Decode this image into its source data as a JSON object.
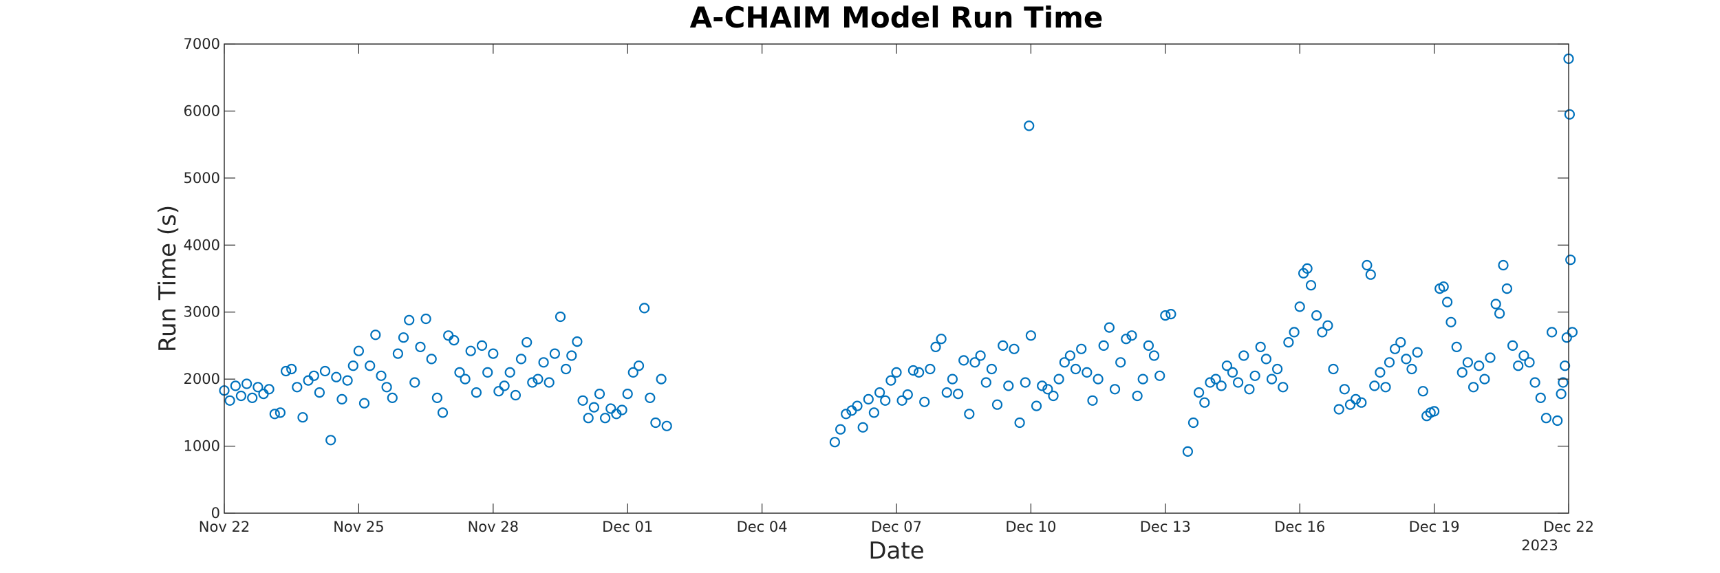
{
  "chart_data": {
    "type": "scatter",
    "title": "A-CHAIM Model Run Time",
    "xlabel": "Date",
    "ylabel": "Run Time (s)",
    "ylim": [
      0,
      7000
    ],
    "xlim": [
      "2022-11-22",
      "2022-12-22"
    ],
    "x_ticks": [
      "Nov 22",
      "Nov 25",
      "Nov 28",
      "Dec 01",
      "Dec 04",
      "Dec 07",
      "Dec 10",
      "Dec 13",
      "Dec 16",
      "Dec 19",
      "Dec 22"
    ],
    "x_secondary_label": "2023",
    "y_ticks": [
      "0",
      "1000",
      "2000",
      "3000",
      "4000",
      "5000",
      "6000",
      "7000"
    ],
    "grid": false,
    "marker_color": "#0072BD",
    "series": [
      {
        "points": [
          [
            "2022-11-22 00:00",
            1830
          ],
          [
            "2022-11-22 03:00",
            1680
          ],
          [
            "2022-11-22 06:00",
            1900
          ],
          [
            "2022-11-22 09:00",
            1750
          ],
          [
            "2022-11-22 12:00",
            1930
          ],
          [
            "2022-11-22 15:00",
            1720
          ],
          [
            "2022-11-22 18:00",
            1880
          ],
          [
            "2022-11-22 21:00",
            1780
          ],
          [
            "2022-11-23 00:00",
            1850
          ],
          [
            "2022-11-23 03:00",
            1480
          ],
          [
            "2022-11-23 06:00",
            1500
          ],
          [
            "2022-11-23 09:00",
            2120
          ],
          [
            "2022-11-23 12:00",
            2150
          ],
          [
            "2022-11-23 15:00",
            1880
          ],
          [
            "2022-11-23 18:00",
            1430
          ],
          [
            "2022-11-23 21:00",
            1980
          ],
          [
            "2022-11-24 00:00",
            2050
          ],
          [
            "2022-11-24 03:00",
            1800
          ],
          [
            "2022-11-24 06:00",
            2120
          ],
          [
            "2022-11-24 09:00",
            1090
          ],
          [
            "2022-11-24 12:00",
            2030
          ],
          [
            "2022-11-24 15:00",
            1700
          ],
          [
            "2022-11-24 18:00",
            1980
          ],
          [
            "2022-11-24 21:00",
            2200
          ],
          [
            "2022-11-25 00:00",
            2420
          ],
          [
            "2022-11-25 03:00",
            1640
          ],
          [
            "2022-11-25 06:00",
            2200
          ],
          [
            "2022-11-25 09:00",
            2660
          ],
          [
            "2022-11-25 12:00",
            2050
          ],
          [
            "2022-11-25 15:00",
            1880
          ],
          [
            "2022-11-25 18:00",
            1720
          ],
          [
            "2022-11-25 21:00",
            2380
          ],
          [
            "2022-11-26 00:00",
            2620
          ],
          [
            "2022-11-26 03:00",
            2880
          ],
          [
            "2022-11-26 06:00",
            1950
          ],
          [
            "2022-11-26 09:00",
            2480
          ],
          [
            "2022-11-26 12:00",
            2900
          ],
          [
            "2022-11-26 15:00",
            2300
          ],
          [
            "2022-11-26 18:00",
            1720
          ],
          [
            "2022-11-26 21:00",
            1500
          ],
          [
            "2022-11-27 00:00",
            2650
          ],
          [
            "2022-11-27 03:00",
            2580
          ],
          [
            "2022-11-27 06:00",
            2100
          ],
          [
            "2022-11-27 09:00",
            2000
          ],
          [
            "2022-11-27 12:00",
            2420
          ],
          [
            "2022-11-27 15:00",
            1800
          ],
          [
            "2022-11-27 18:00",
            2500
          ],
          [
            "2022-11-27 21:00",
            2100
          ],
          [
            "2022-11-28 00:00",
            2380
          ],
          [
            "2022-11-28 03:00",
            1820
          ],
          [
            "2022-11-28 06:00",
            1900
          ],
          [
            "2022-11-28 09:00",
            2100
          ],
          [
            "2022-11-28 12:00",
            1760
          ],
          [
            "2022-11-28 15:00",
            2300
          ],
          [
            "2022-11-28 18:00",
            2550
          ],
          [
            "2022-11-28 21:00",
            1950
          ],
          [
            "2022-11-29 00:00",
            2000
          ],
          [
            "2022-11-29 03:00",
            2250
          ],
          [
            "2022-11-29 06:00",
            1950
          ],
          [
            "2022-11-29 09:00",
            2380
          ],
          [
            "2022-11-29 12:00",
            2930
          ],
          [
            "2022-11-29 15:00",
            2150
          ],
          [
            "2022-11-29 18:00",
            2350
          ],
          [
            "2022-11-29 21:00",
            2560
          ],
          [
            "2022-11-30 00:00",
            1680
          ],
          [
            "2022-11-30 03:00",
            1420
          ],
          [
            "2022-11-30 06:00",
            1580
          ],
          [
            "2022-11-30 09:00",
            1780
          ],
          [
            "2022-11-30 12:00",
            1420
          ],
          [
            "2022-11-30 15:00",
            1560
          ],
          [
            "2022-11-30 18:00",
            1480
          ],
          [
            "2022-11-30 21:00",
            1540
          ],
          [
            "2022-12-01 00:00",
            1780
          ],
          [
            "2022-12-01 03:00",
            2100
          ],
          [
            "2022-12-01 06:00",
            2200
          ],
          [
            "2022-12-01 09:00",
            3060
          ],
          [
            "2022-12-01 12:00",
            1720
          ],
          [
            "2022-12-01 15:00",
            1350
          ],
          [
            "2022-12-01 18:00",
            2000
          ],
          [
            "2022-12-01 21:00",
            1300
          ],
          [
            "2022-12-05 15:00",
            1060
          ],
          [
            "2022-12-05 18:00",
            1250
          ],
          [
            "2022-12-05 21:00",
            1480
          ],
          [
            "2022-12-06 00:00",
            1530
          ],
          [
            "2022-12-06 03:00",
            1600
          ],
          [
            "2022-12-06 06:00",
            1280
          ],
          [
            "2022-12-06 09:00",
            1700
          ],
          [
            "2022-12-06 12:00",
            1500
          ],
          [
            "2022-12-06 15:00",
            1800
          ],
          [
            "2022-12-06 18:00",
            1680
          ],
          [
            "2022-12-06 21:00",
            1980
          ],
          [
            "2022-12-07 00:00",
            2100
          ],
          [
            "2022-12-07 03:00",
            1680
          ],
          [
            "2022-12-07 06:00",
            1770
          ],
          [
            "2022-12-07 09:00",
            2130
          ],
          [
            "2022-12-07 12:00",
            2100
          ],
          [
            "2022-12-07 15:00",
            1660
          ],
          [
            "2022-12-07 18:00",
            2150
          ],
          [
            "2022-12-07 21:00",
            2480
          ],
          [
            "2022-12-08 00:00",
            2600
          ],
          [
            "2022-12-08 03:00",
            1800
          ],
          [
            "2022-12-08 06:00",
            2000
          ],
          [
            "2022-12-08 09:00",
            1780
          ],
          [
            "2022-12-08 12:00",
            2280
          ],
          [
            "2022-12-08 15:00",
            1480
          ],
          [
            "2022-12-08 18:00",
            2250
          ],
          [
            "2022-12-08 21:00",
            2350
          ],
          [
            "2022-12-09 00:00",
            1950
          ],
          [
            "2022-12-09 03:00",
            2150
          ],
          [
            "2022-12-09 06:00",
            1620
          ],
          [
            "2022-12-09 09:00",
            2500
          ],
          [
            "2022-12-09 12:00",
            1900
          ],
          [
            "2022-12-09 15:00",
            2450
          ],
          [
            "2022-12-09 18:00",
            1350
          ],
          [
            "2022-12-09 21:00",
            1950
          ],
          [
            "2022-12-09 23:00",
            5780
          ],
          [
            "2022-12-10 00:00",
            2650
          ],
          [
            "2022-12-10 03:00",
            1600
          ],
          [
            "2022-12-10 06:00",
            1900
          ],
          [
            "2022-12-10 09:00",
            1850
          ],
          [
            "2022-12-10 12:00",
            1750
          ],
          [
            "2022-12-10 15:00",
            2000
          ],
          [
            "2022-12-10 18:00",
            2250
          ],
          [
            "2022-12-10 21:00",
            2350
          ],
          [
            "2022-12-11 00:00",
            2150
          ],
          [
            "2022-12-11 03:00",
            2450
          ],
          [
            "2022-12-11 06:00",
            2100
          ],
          [
            "2022-12-11 09:00",
            1680
          ],
          [
            "2022-12-11 12:00",
            2000
          ],
          [
            "2022-12-11 15:00",
            2500
          ],
          [
            "2022-12-11 18:00",
            2770
          ],
          [
            "2022-12-11 21:00",
            1850
          ],
          [
            "2022-12-12 00:00",
            2250
          ],
          [
            "2022-12-12 03:00",
            2600
          ],
          [
            "2022-12-12 06:00",
            2650
          ],
          [
            "2022-12-12 09:00",
            1750
          ],
          [
            "2022-12-12 12:00",
            2000
          ],
          [
            "2022-12-12 15:00",
            2500
          ],
          [
            "2022-12-12 18:00",
            2350
          ],
          [
            "2022-12-12 21:00",
            2050
          ],
          [
            "2022-12-13 00:00",
            2950
          ],
          [
            "2022-12-13 03:00",
            2970
          ],
          [
            "2022-12-13 12:00",
            920
          ],
          [
            "2022-12-13 15:00",
            1350
          ],
          [
            "2022-12-13 18:00",
            1800
          ],
          [
            "2022-12-13 21:00",
            1650
          ],
          [
            "2022-12-14 00:00",
            1950
          ],
          [
            "2022-12-14 03:00",
            2000
          ],
          [
            "2022-12-14 06:00",
            1900
          ],
          [
            "2022-12-14 09:00",
            2200
          ],
          [
            "2022-12-14 12:00",
            2100
          ],
          [
            "2022-12-14 15:00",
            1950
          ],
          [
            "2022-12-14 18:00",
            2350
          ],
          [
            "2022-12-14 21:00",
            1850
          ],
          [
            "2022-12-15 00:00",
            2050
          ],
          [
            "2022-12-15 03:00",
            2480
          ],
          [
            "2022-12-15 06:00",
            2300
          ],
          [
            "2022-12-15 09:00",
            2000
          ],
          [
            "2022-12-15 12:00",
            2150
          ],
          [
            "2022-12-15 15:00",
            1880
          ],
          [
            "2022-12-15 18:00",
            2550
          ],
          [
            "2022-12-15 21:00",
            2700
          ],
          [
            "2022-12-16 00:00",
            3080
          ],
          [
            "2022-12-16 02:00",
            3580
          ],
          [
            "2022-12-16 04:00",
            3650
          ],
          [
            "2022-12-16 06:00",
            3400
          ],
          [
            "2022-12-16 09:00",
            2950
          ],
          [
            "2022-12-16 12:00",
            2700
          ],
          [
            "2022-12-16 15:00",
            2800
          ],
          [
            "2022-12-16 18:00",
            2150
          ],
          [
            "2022-12-16 21:00",
            1550
          ],
          [
            "2022-12-17 00:00",
            1850
          ],
          [
            "2022-12-17 03:00",
            1620
          ],
          [
            "2022-12-17 06:00",
            1700
          ],
          [
            "2022-12-17 09:00",
            1650
          ],
          [
            "2022-12-17 12:00",
            3700
          ],
          [
            "2022-12-17 14:00",
            3560
          ],
          [
            "2022-12-17 16:00",
            1900
          ],
          [
            "2022-12-17 19:00",
            2100
          ],
          [
            "2022-12-17 22:00",
            1880
          ],
          [
            "2022-12-18 00:00",
            2250
          ],
          [
            "2022-12-18 03:00",
            2450
          ],
          [
            "2022-12-18 06:00",
            2550
          ],
          [
            "2022-12-18 09:00",
            2300
          ],
          [
            "2022-12-18 12:00",
            2150
          ],
          [
            "2022-12-18 15:00",
            2400
          ],
          [
            "2022-12-18 18:00",
            1820
          ],
          [
            "2022-12-18 20:00",
            1450
          ],
          [
            "2022-12-18 22:00",
            1500
          ],
          [
            "2022-12-19 00:00",
            1520
          ],
          [
            "2022-12-19 03:00",
            3350
          ],
          [
            "2022-12-19 05:00",
            3380
          ],
          [
            "2022-12-19 07:00",
            3150
          ],
          [
            "2022-12-19 09:00",
            2850
          ],
          [
            "2022-12-19 12:00",
            2480
          ],
          [
            "2022-12-19 15:00",
            2100
          ],
          [
            "2022-12-19 18:00",
            2250
          ],
          [
            "2022-12-19 21:00",
            1880
          ],
          [
            "2022-12-20 00:00",
            2200
          ],
          [
            "2022-12-20 03:00",
            2000
          ],
          [
            "2022-12-20 06:00",
            2320
          ],
          [
            "2022-12-20 09:00",
            3120
          ],
          [
            "2022-12-20 11:00",
            2980
          ],
          [
            "2022-12-20 13:00",
            3700
          ],
          [
            "2022-12-20 15:00",
            3350
          ],
          [
            "2022-12-20 18:00",
            2500
          ],
          [
            "2022-12-20 21:00",
            2200
          ],
          [
            "2022-12-21 00:00",
            2350
          ],
          [
            "2022-12-21 03:00",
            2250
          ],
          [
            "2022-12-21 06:00",
            1950
          ],
          [
            "2022-12-21 09:00",
            1720
          ],
          [
            "2022-12-21 12:00",
            1420
          ],
          [
            "2022-12-21 15:00",
            2700
          ],
          [
            "2022-12-21 18:00",
            1380
          ],
          [
            "2022-12-21 21:00",
            1950
          ],
          [
            "2022-12-22 00:00",
            6780
          ],
          [
            "2022-12-22 00:30",
            5950
          ],
          [
            "2022-12-22 01:00",
            3780
          ],
          [
            "2022-12-22 02:00",
            2700
          ],
          [
            "2022-12-21 23:00",
            2620
          ],
          [
            "2022-12-21 22:00",
            2200
          ],
          [
            "2022-12-21 20:00",
            1780
          ]
        ]
      }
    ]
  }
}
